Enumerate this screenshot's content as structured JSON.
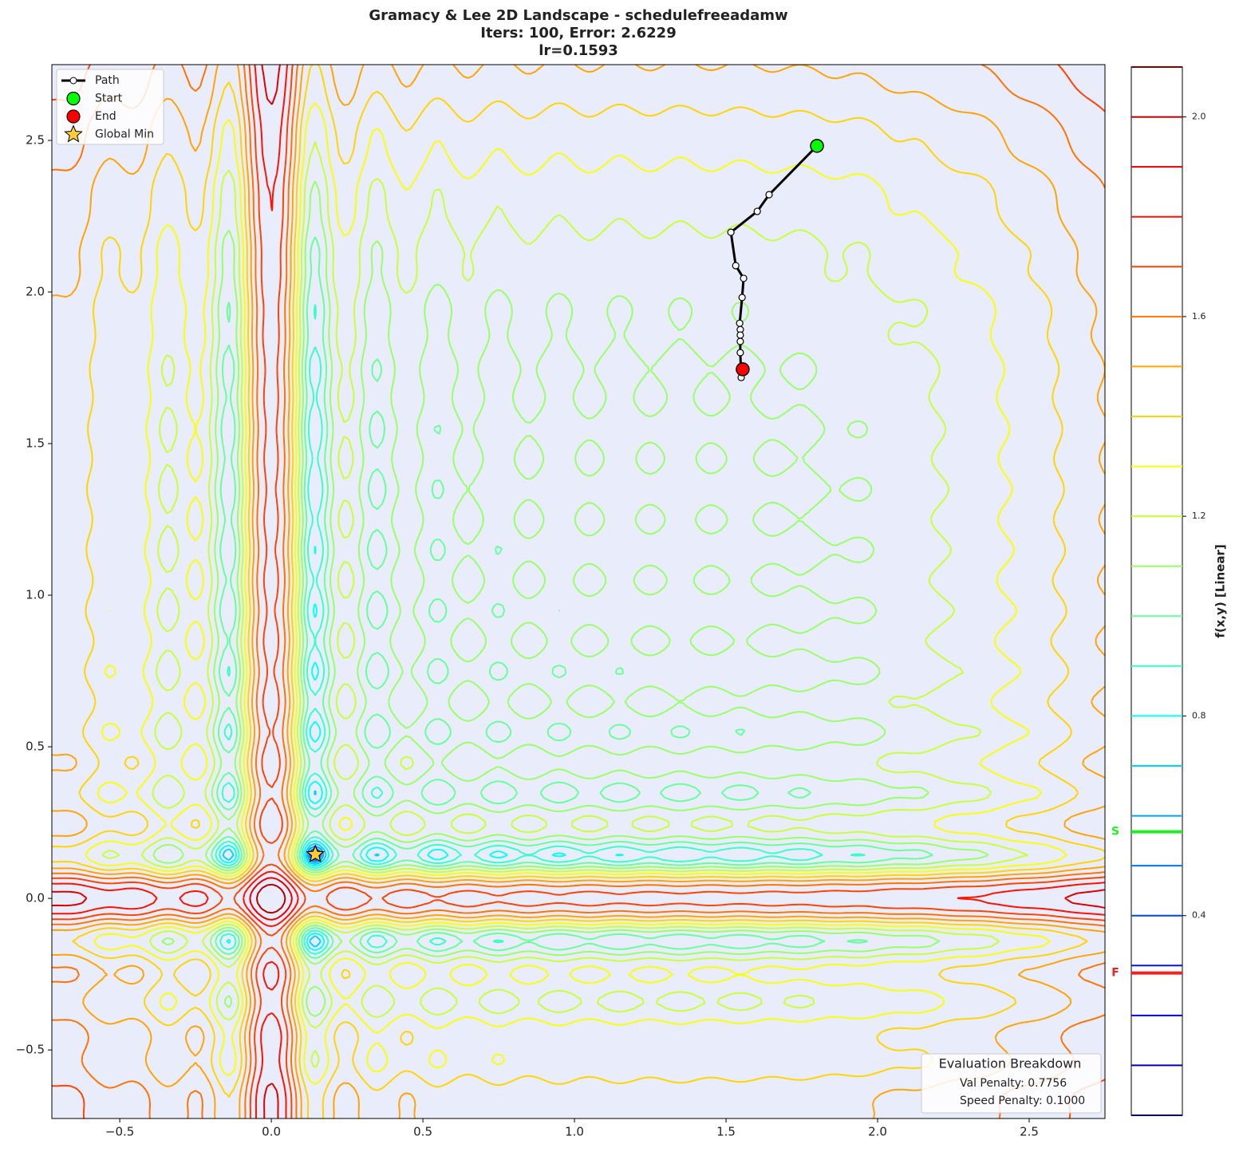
{
  "chart_data": {
    "type": "contour",
    "title_lines": [
      "Gramacy & Lee 2D Landscape - schedulefreeadamw",
      "Iters: 100, Error: 2.6229",
      "lr=0.1593"
    ],
    "xlim": [
      -0.724,
      2.75
    ],
    "ylim": [
      -0.726,
      2.75
    ],
    "xticks": [
      {
        "value": -0.5,
        "label": "−0.5"
      },
      {
        "value": 0,
        "label": "0.0"
      },
      0.5,
      {
        "value": 1,
        "label": "1.0"
      },
      1.5,
      {
        "value": 2,
        "label": "2.0"
      },
      2.5
    ],
    "yticks": [
      {
        "value": -0.5,
        "label": "−0.5"
      },
      {
        "value": 0,
        "label": "0.0"
      },
      0.5,
      {
        "value": 1,
        "label": "1.0"
      },
      1.5,
      {
        "value": 2,
        "label": "2.0"
      },
      2.5
    ],
    "series": [
      {
        "name": "Path",
        "color": "#000000",
        "x": [
          1.8,
          1.642,
          1.603,
          1.516,
          1.532,
          1.558,
          1.553,
          1.545,
          1.547,
          1.547,
          1.547,
          1.547,
          1.55,
          1.555
        ],
        "y": [
          2.482,
          2.321,
          2.266,
          2.197,
          2.087,
          2.045,
          1.982,
          1.897,
          1.876,
          1.858,
          1.837,
          1.8,
          1.718,
          1.745
        ]
      },
      {
        "name": "Start",
        "color": "#00ff00",
        "marker": "circle",
        "x": [
          1.8
        ],
        "y": [
          2.482
        ]
      },
      {
        "name": "End",
        "color": "#ff0000",
        "marker": "circle",
        "x": [
          1.555
        ],
        "y": [
          1.745
        ]
      },
      {
        "name": "Global Min",
        "color": "#ffcc33",
        "marker": "star",
        "x": [
          0.145
        ],
        "y": [
          0.145
        ]
      }
    ],
    "legend": "upper left",
    "colorbar": {
      "label": "f(x,y) [Linear]",
      "lim": [
        0,
        2.1
      ],
      "ticks": [
        0.4,
        0.8,
        1.2,
        1.6,
        {
          "value": 2.0,
          "label": "2.0"
        }
      ],
      "levels": [
        0,
        0.1,
        0.2,
        0.3,
        0.4,
        0.5,
        0.6,
        0.7,
        0.8,
        0.9,
        1.0,
        1.1,
        1.2,
        1.3,
        1.4,
        1.5,
        1.6,
        1.7,
        1.8,
        1.9,
        2.0,
        2.1
      ],
      "markers": [
        {
          "label": "S",
          "value": 0.568,
          "color": "#22ee22"
        },
        {
          "label": "F",
          "value": 0.285,
          "color": "#ee2222"
        }
      ]
    },
    "annotation": {
      "title": "Evaluation Breakdown",
      "lines": [
        "Val Penalty: 0.7756",
        "Speed Penalty: 0.1000"
      ]
    }
  }
}
